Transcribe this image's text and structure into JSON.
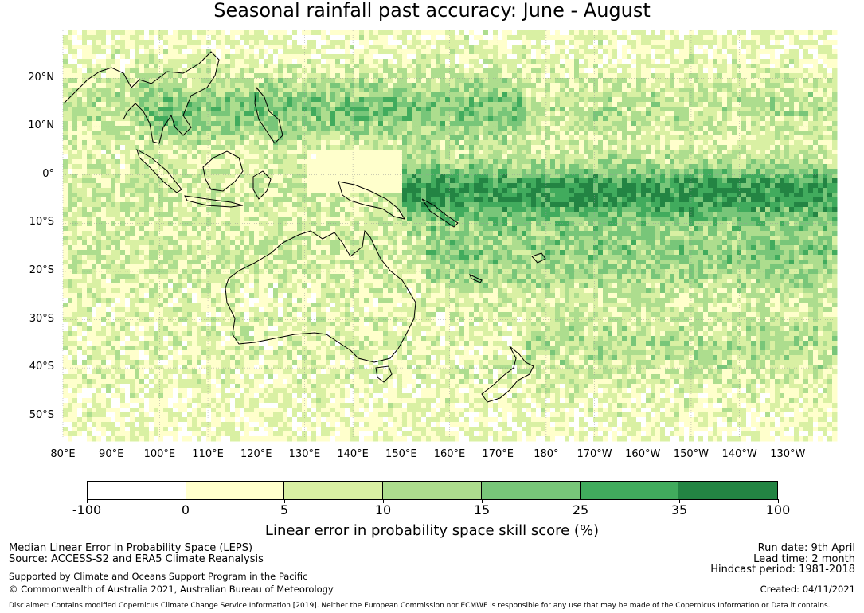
{
  "title": "Seasonal rainfall past accuracy: June - August",
  "map": {
    "lat_labels": [
      "20°N",
      "10°N",
      "0°",
      "10°S",
      "20°S",
      "30°S",
      "40°S",
      "50°S"
    ],
    "lon_labels": [
      "80°E",
      "90°E",
      "100°E",
      "110°E",
      "120°E",
      "130°E",
      "140°E",
      "150°E",
      "160°E",
      "170°E",
      "180°",
      "170°W",
      "160°W",
      "150°W",
      "140°W",
      "130°W"
    ],
    "lat_range": [
      -55,
      30
    ],
    "lon_range": [
      80,
      240
    ],
    "grid": true
  },
  "colorbar": {
    "label": "Linear error in probability space skill score (%)",
    "ticks": [
      "-100",
      "0",
      "5",
      "10",
      "15",
      "25",
      "35",
      "100"
    ],
    "colors": [
      "#ffffff",
      "#ffffcc",
      "#d9f0a3",
      "#addd8e",
      "#78c679",
      "#41ab5d",
      "#238443"
    ]
  },
  "meta": {
    "line1": "Median Linear Error in Probability Space (LEPS)",
    "line2": "Source: ACCESS-S2 and ERA5 Climate Reanalysis",
    "support": "Supported by Climate and Oceans Support Program in the Pacific",
    "copyright": "© Commonwealth of Australia 2021, Australian Bureau of Meteorology",
    "run_date": "Run date: 9th April",
    "lead_time": "Lead time: 2 month",
    "hindcast": "Hindcast period: 1981-2018",
    "created": "Created: 04/11/2021",
    "disclaimer": "Disclaimer: Contains modified Copernicus Climate Change Service Information [2019]. Neither the European Commission nor ECMWF is responsible for any use that may be made of the Copernicus Information or Data it contains."
  }
}
